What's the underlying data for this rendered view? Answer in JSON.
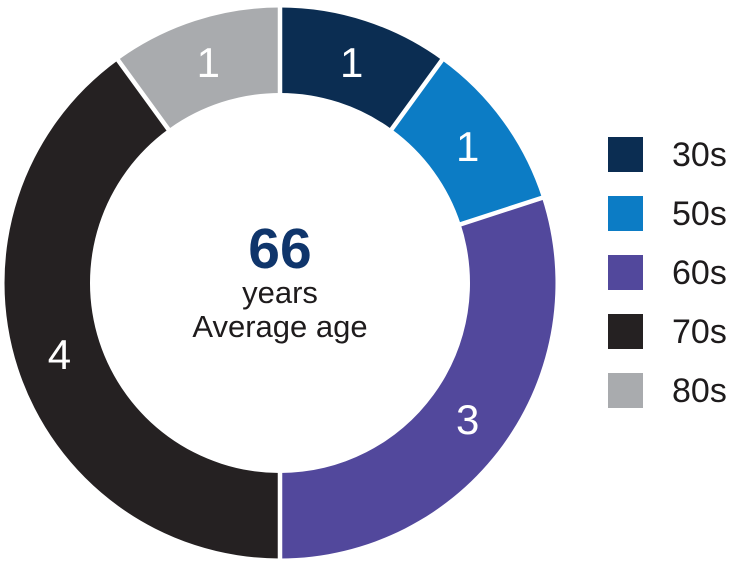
{
  "chart_data": {
    "type": "pie",
    "subtype": "donut",
    "categories": [
      "30s",
      "50s",
      "60s",
      "70s",
      "80s"
    ],
    "values": [
      1,
      1,
      3,
      4,
      1
    ],
    "total": 10,
    "colors": [
      "#0b2d52",
      "#0c7cc5",
      "#52489c",
      "#252122",
      "#a9abae"
    ],
    "segment_value_labels": [
      "1",
      "1",
      "3",
      "4",
      "1"
    ],
    "center": {
      "value": "66",
      "unit": "years",
      "caption": "Average age"
    },
    "center_value_color": "#0f356b",
    "segment_label_color": "#ffffff",
    "text_color": "#1e1b1c",
    "background_color": "#ffffff",
    "divider_color": "#ffffff",
    "legend_position": "right",
    "start_angle_deg": 0,
    "direction": "clockwise"
  }
}
